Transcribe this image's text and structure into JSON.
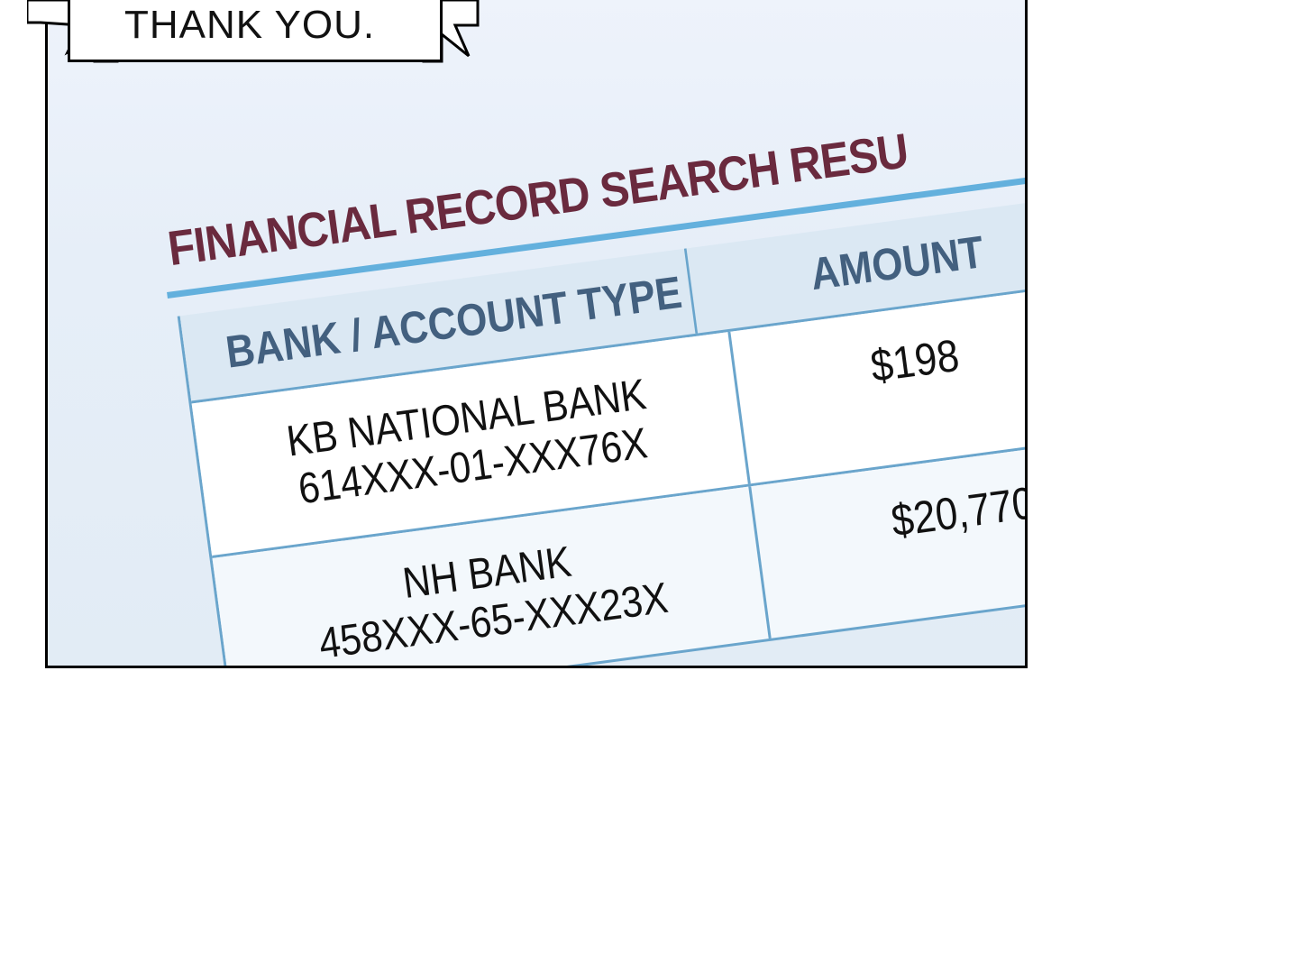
{
  "speech_bubble": {
    "text": "THANK YOU."
  },
  "document": {
    "title": "FINANCIAL RECORD SEARCH RESU",
    "headers": {
      "bank": "BANK / ACCOUNT TYPE",
      "amount": "AMOUNT"
    },
    "rows": [
      {
        "bank": "KB NATIONAL BANK",
        "account": "614XXX-01-XXX76X",
        "amount": "$198"
      },
      {
        "bank": "NH BANK",
        "account": "458XXX-65-XXX23X",
        "amount": "$20,770"
      }
    ]
  },
  "colors": {
    "title": "#6a2a3e",
    "header_text": "#43607f",
    "rule": "#6aa5cc"
  }
}
